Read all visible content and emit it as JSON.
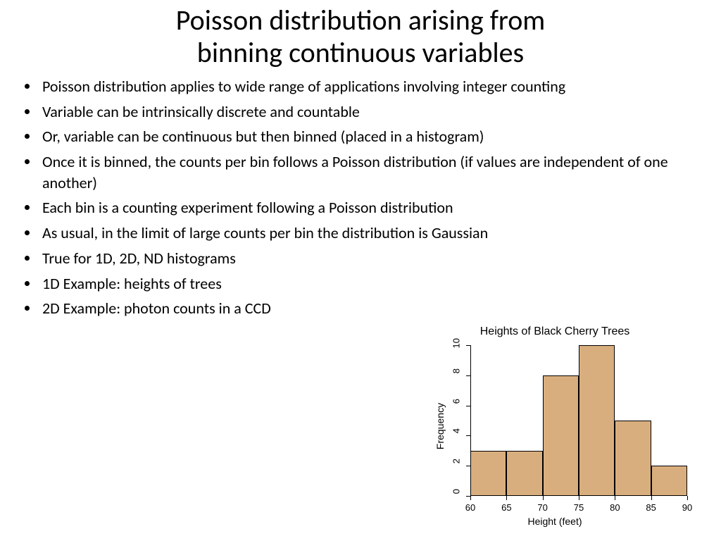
{
  "title_line1": "Poisson distribution arising from",
  "title_line2": "binning continuous variables",
  "bullets": [
    "Poisson distribution applies to wide range of applications involving integer counting",
    "Variable can be intrinsically discrete and countable",
    "Or, variable can be continuous but then binned (placed in a histogram)",
    "Once it is binned, the counts per bin follows a Poisson distribution (if values are independent of one another)",
    "Each bin is a counting experiment following a Poisson distribution",
    "As usual, in the limit of large counts per bin the distribution is Gaussian",
    "True for 1D, 2D, ND histograms",
    "1D Example: heights of trees",
    "2D Example: photon counts in a CCD"
  ],
  "chart": {
    "type": "histogram",
    "title": "Heights of Black Cherry Trees",
    "xlabel": "Height (feet)",
    "ylabel": "Frequency",
    "bar_color": "#d9ae7e",
    "bar_border_color": "#000000",
    "background_color": "#ffffff",
    "x_edges": [
      60,
      65,
      70,
      75,
      80,
      85,
      90
    ],
    "values": [
      3,
      3,
      8,
      10,
      5,
      2
    ],
    "ylim": [
      0,
      10
    ],
    "yticks": [
      0,
      2,
      4,
      6,
      8,
      10
    ],
    "xticks": [
      60,
      65,
      70,
      75,
      80,
      85,
      90
    ],
    "title_fontsize": 16,
    "label_fontsize": 14,
    "tick_fontsize": 13
  }
}
